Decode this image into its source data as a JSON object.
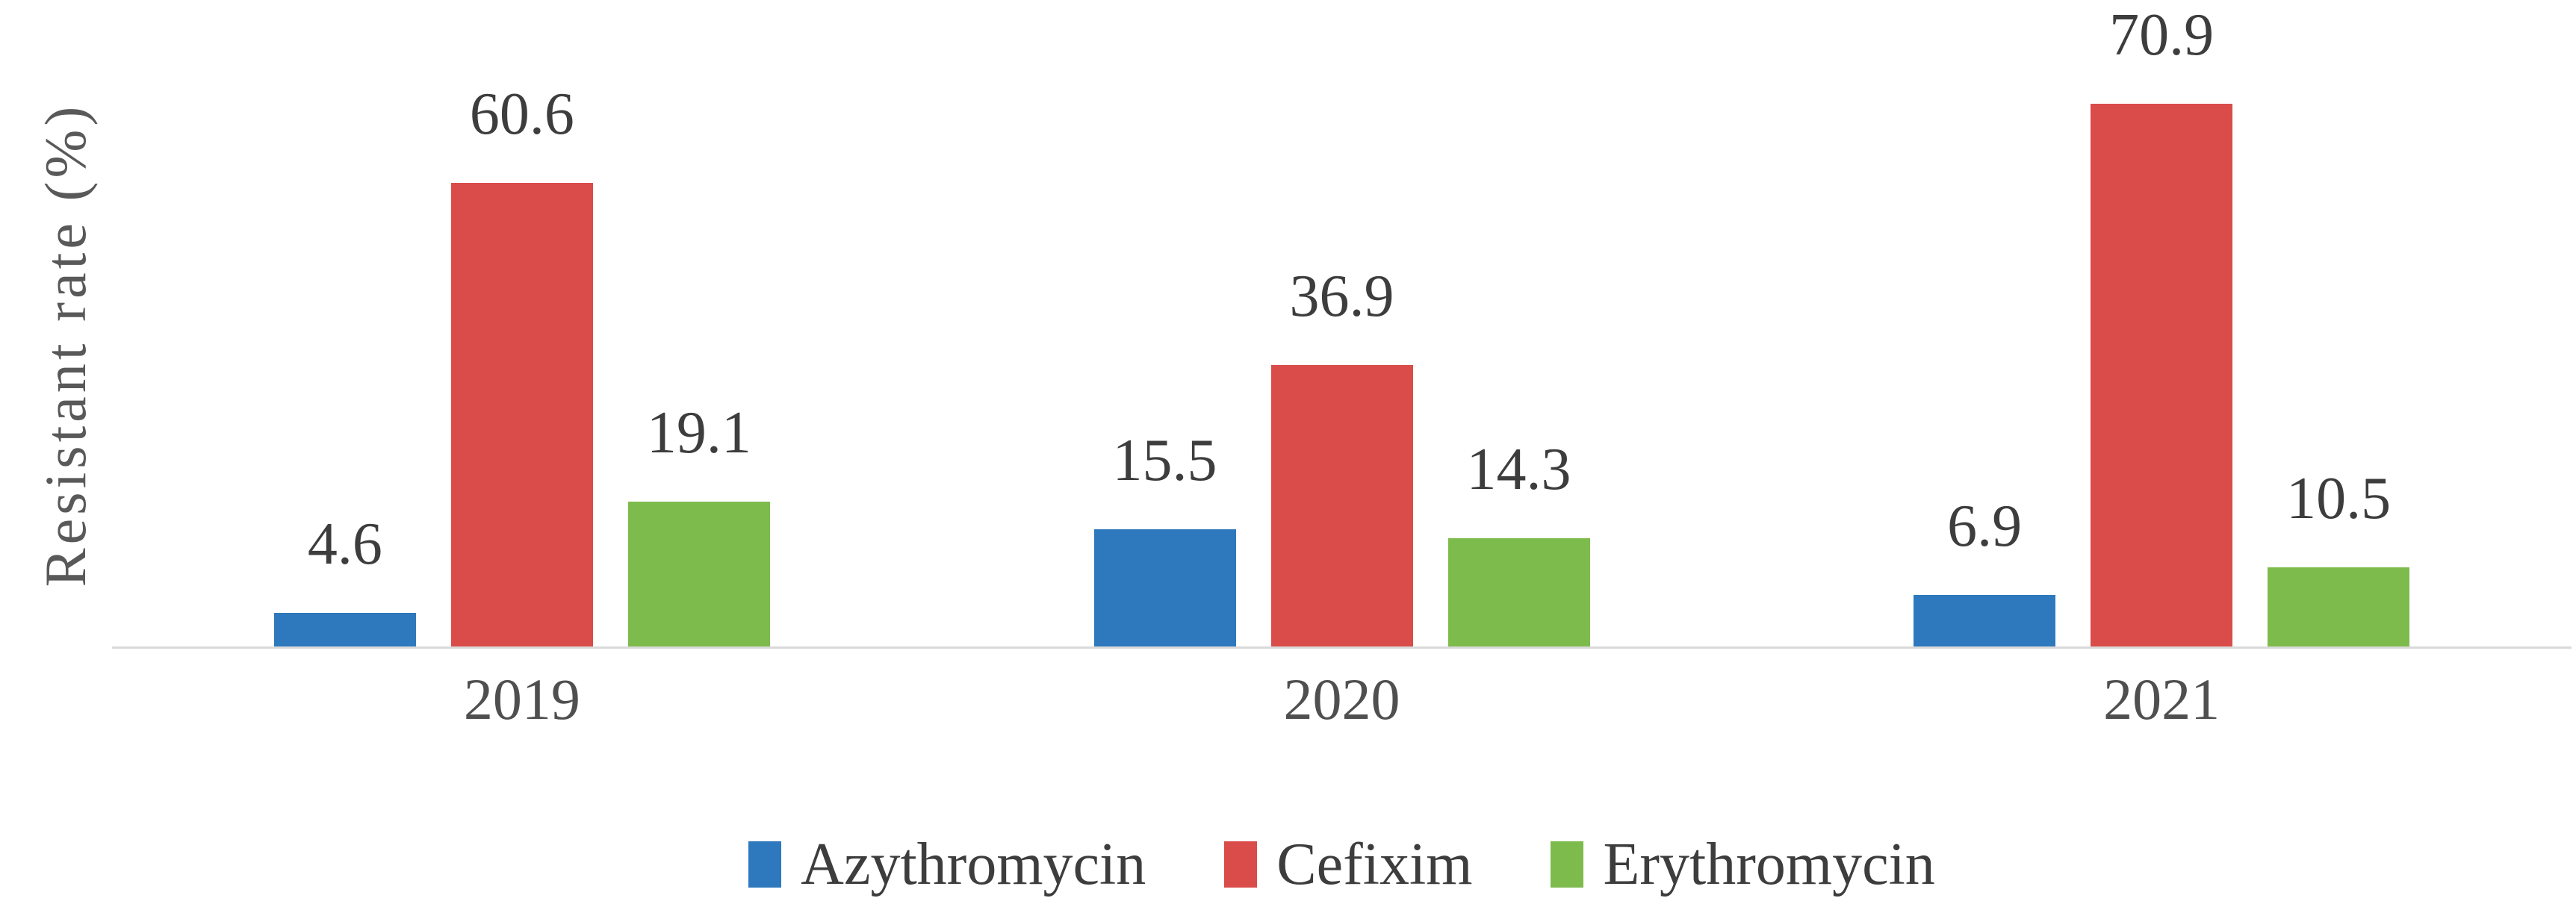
{
  "chart": {
    "y_axis_title": "Resistant rate (%)",
    "colors": {
      "azythromycin": "#2E79BD",
      "cefixim": "#D94C49",
      "erythromycin": "#7DBB4C",
      "axis_line": "#D9D9D9",
      "data_label_text": "#3D3D3D",
      "axis_text": "#4F4F4F",
      "y_title_text": "#595959",
      "background": "#FFFFFF"
    }
  },
  "chart_data": {
    "type": "bar",
    "categories": [
      "2019",
      "2020",
      "2021"
    ],
    "series": [
      {
        "name": "Azythromycin",
        "color": "#2E79BD",
        "values": [
          4.6,
          15.5,
          6.9
        ]
      },
      {
        "name": "Cefixim",
        "color": "#D94C49",
        "values": [
          60.6,
          36.9,
          70.9
        ]
      },
      {
        "name": "Erythromycin",
        "color": "#7DBB4C",
        "values": [
          19.1,
          14.3,
          10.5
        ]
      }
    ],
    "title": "",
    "xlabel": "",
    "ylabel": "Resistant rate (%)",
    "ylim": [
      0,
      84
    ],
    "grid": false,
    "y_axis_ticks_visible": false,
    "data_labels_visible": true,
    "legend_position": "bottom"
  }
}
